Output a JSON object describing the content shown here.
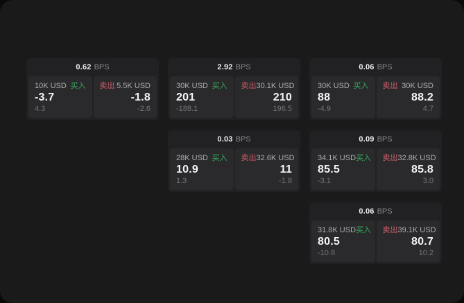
{
  "labels": {
    "buy": "买入",
    "sell": "卖出",
    "bps_unit": "BPS"
  },
  "colors": {
    "page_bg": "#1a1a1b",
    "card_bg": "#212123",
    "panel_bg": "#2a2a2c",
    "buy_green": "#36a65a",
    "sell_red": "#cf5a69",
    "value_white": "#f4f4f5",
    "label_gray": "#aeaeb1",
    "delta_gray": "#747478"
  },
  "cards": [
    {
      "bps": "0.62",
      "grid": {
        "col": 1,
        "row": 1
      },
      "buy": {
        "amount": "10K USD",
        "value": "-3.7",
        "delta": "4.3"
      },
      "sell": {
        "amount": "5.5K USD",
        "value": "-1.8",
        "delta": "-2.6"
      }
    },
    {
      "bps": "2.92",
      "grid": {
        "col": 2,
        "row": 1
      },
      "buy": {
        "amount": "30K USD",
        "value": "201",
        "delta": "-188.1"
      },
      "sell": {
        "amount": "30.1K USD",
        "value": "210",
        "delta": "196.5"
      }
    },
    {
      "bps": "0.06",
      "grid": {
        "col": 3,
        "row": 1
      },
      "buy": {
        "amount": "30K USD",
        "value": "88",
        "delta": "-4.9"
      },
      "sell": {
        "amount": "30K USD",
        "value": "88.2",
        "delta": "4.7"
      }
    },
    {
      "bps": "0.03",
      "grid": {
        "col": 2,
        "row": 2
      },
      "buy": {
        "amount": "28K USD",
        "value": "10.9",
        "delta": "1.3"
      },
      "sell": {
        "amount": "32.6K USD",
        "value": "11",
        "delta": "-1.8"
      }
    },
    {
      "bps": "0.09",
      "grid": {
        "col": 3,
        "row": 2
      },
      "buy": {
        "amount": "34.1K USD",
        "value": "85.5",
        "delta": "-3.1"
      },
      "sell": {
        "amount": "32.8K USD",
        "value": "85.8",
        "delta": "3.0"
      }
    },
    {
      "bps": "0.06",
      "grid": {
        "col": 3,
        "row": 3
      },
      "buy": {
        "amount": "31.8K USD",
        "value": "80.5",
        "delta": "-10.8"
      },
      "sell": {
        "amount": "39.1K USD",
        "value": "80.7",
        "delta": "10.2"
      }
    }
  ]
}
